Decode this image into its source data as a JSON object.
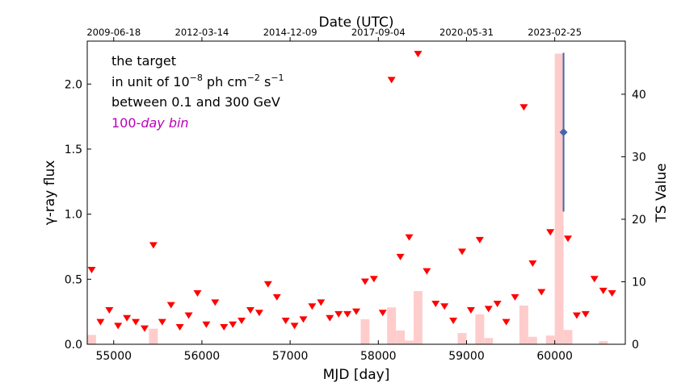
{
  "chart_data": {
    "type": "scatter",
    "top_axis_title": "Date (UTC)",
    "xlabel": "MJD [day]",
    "ylabel_left": "γ-ray flux",
    "ylabel_right": "TS Value",
    "xlim": [
      54700,
      60800
    ],
    "ylim_left": [
      0,
      2.33
    ],
    "ylim_right": [
      0,
      48.5
    ],
    "x_ticks": [
      55000,
      56000,
      57000,
      58000,
      59000,
      60000
    ],
    "x_tick_labels": [
      "55000",
      "56000",
      "57000",
      "58000",
      "59000",
      "60000"
    ],
    "y_left_ticks": [
      0.0,
      0.5,
      1.0,
      1.5,
      2.0
    ],
    "y_left_tick_labels": [
      "0.0",
      "0.5",
      "1.0",
      "1.5",
      "2.0"
    ],
    "y_right_ticks": [
      0,
      10,
      20,
      30,
      40
    ],
    "y_right_tick_labels": [
      "0",
      "10",
      "20",
      "30",
      "40"
    ],
    "top_ticks": [
      55000,
      56000,
      57000,
      58000,
      59000,
      60000
    ],
    "top_tick_labels": [
      "2009-06-18",
      "2012-03-14",
      "2014-12-09",
      "2017-09-04",
      "2020-05-31",
      "2023-02-25"
    ],
    "annotations": {
      "line1": "the target",
      "line2_prefix": "in unit of 10",
      "line2_exp1": "−8",
      "line2_mid": " ph cm",
      "line2_exp2": "−2",
      "line2_s": " s",
      "line2_exp3": "−1",
      "line3": "between 0.1 and 300 GeV",
      "line4_num": "100-",
      "line4_italic": "day bin"
    },
    "upper_limits": {
      "name": "Upper limits",
      "color": "#ff0000",
      "x": [
        54750,
        54850,
        54950,
        55050,
        55150,
        55250,
        55350,
        55450,
        55550,
        55650,
        55750,
        55850,
        55950,
        56050,
        56150,
        56250,
        56350,
        56450,
        56550,
        56650,
        56750,
        56850,
        56950,
        57050,
        57150,
        57250,
        57350,
        57450,
        57550,
        57650,
        57750,
        57850,
        57950,
        58050,
        58150,
        58250,
        58350,
        58450,
        58550,
        58650,
        58750,
        58850,
        58950,
        59050,
        59150,
        59250,
        59350,
        59450,
        59550,
        59650,
        59750,
        59850,
        59950,
        60150,
        60250,
        60350,
        60450,
        60550,
        60650
      ],
      "y": [
        0.57,
        0.17,
        0.26,
        0.14,
        0.2,
        0.17,
        0.12,
        0.76,
        0.17,
        0.3,
        0.13,
        0.22,
        0.39,
        0.15,
        0.32,
        0.13,
        0.15,
        0.18,
        0.26,
        0.24,
        0.46,
        0.36,
        0.18,
        0.14,
        0.19,
        0.29,
        0.32,
        0.2,
        0.23,
        0.23,
        0.25,
        0.48,
        0.5,
        0.24,
        2.03,
        0.67,
        0.82,
        2.23,
        0.56,
        0.31,
        0.29,
        0.18,
        0.71,
        0.26,
        0.8,
        0.27,
        0.31,
        0.17,
        0.36,
        1.82,
        0.62,
        0.4,
        0.86,
        0.81,
        0.22,
        0.23,
        0.5,
        0.41,
        0.39
      ]
    },
    "detections": {
      "name": "Detection",
      "color": "#4466aa",
      "x": [
        60100
      ],
      "y": [
        1.63
      ],
      "err_low": [
        1.02
      ],
      "err_high": [
        2.24
      ]
    },
    "ts_bars": {
      "name": "TS Value",
      "color": "#ffcccc",
      "bin_width": 100,
      "x": [
        54750,
        55450,
        57850,
        58150,
        58250,
        58350,
        58450,
        58950,
        59150,
        59250,
        59650,
        59750,
        59950,
        60050,
        60150,
        60550
      ],
      "values": [
        1.5,
        2.5,
        4.0,
        5.9,
        2.2,
        0.6,
        8.5,
        1.8,
        4.8,
        1.0,
        6.2,
        1.2,
        1.4,
        46.5,
        2.3,
        0.5
      ]
    }
  }
}
